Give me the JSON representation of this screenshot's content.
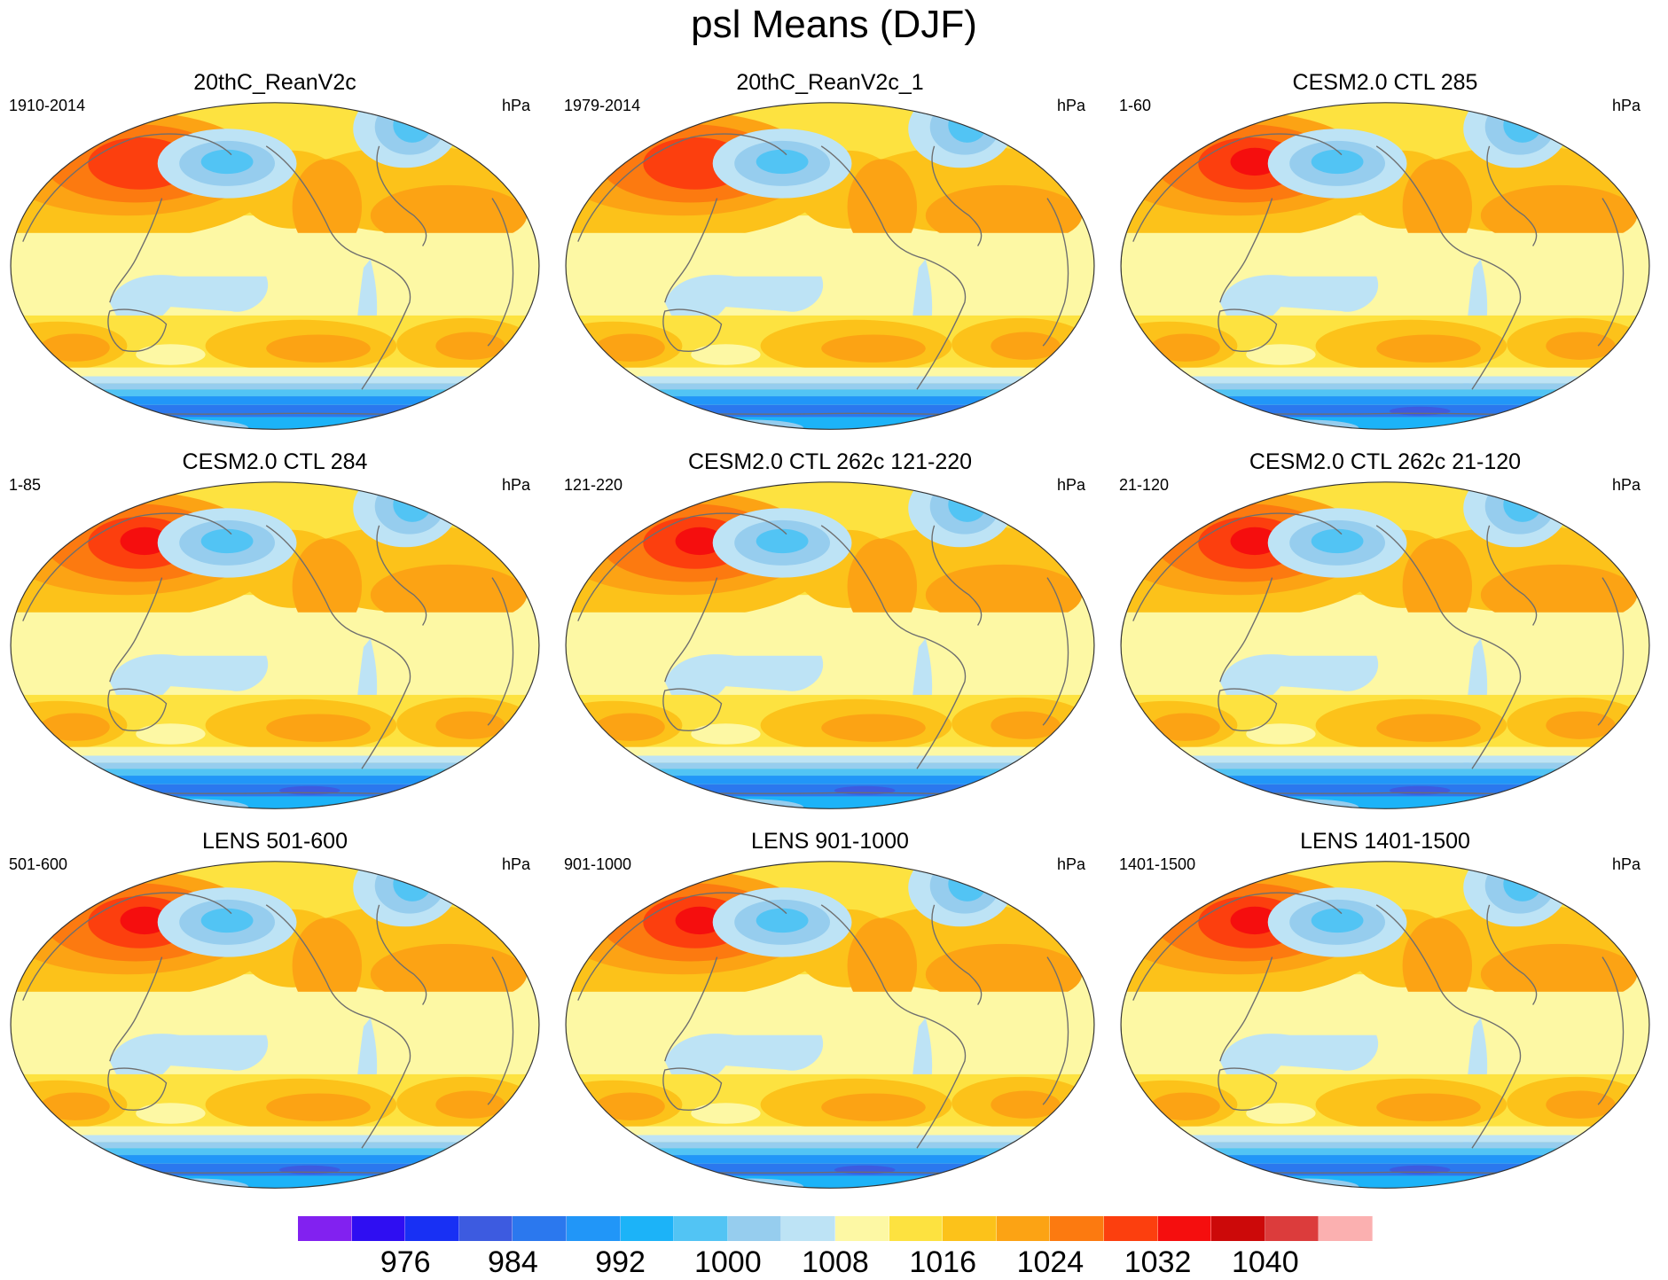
{
  "title": "psl Means (DJF)",
  "panels": [
    {
      "title": "20thC_ReanV2c",
      "left_label": "1910-2014",
      "right_label": "hPa"
    },
    {
      "title": "20thC_ReanV2c_1",
      "left_label": "1979-2014",
      "right_label": "hPa"
    },
    {
      "title": "CESM2.0 CTL 285",
      "left_label": "1-60",
      "right_label": "hPa"
    },
    {
      "title": "CESM2.0 CTL 284",
      "left_label": "1-85",
      "right_label": "hPa"
    },
    {
      "title": "CESM2.0 CTL 262c 121-220",
      "left_label": "121-220",
      "right_label": "hPa"
    },
    {
      "title": "CESM2.0 CTL 262c 21-120",
      "left_label": "21-120",
      "right_label": "hPa"
    },
    {
      "title": "LENS 501-600",
      "left_label": "501-600",
      "right_label": "hPa"
    },
    {
      "title": "LENS 901-1000",
      "left_label": "901-1000",
      "right_label": "hPa"
    },
    {
      "title": "LENS 1401-1500",
      "left_label": "1401-1500",
      "right_label": "hPa"
    }
  ],
  "colorbar": {
    "colors": [
      "#8221f0",
      "#2f0ef2",
      "#1830f4",
      "#3d5be0",
      "#2b78ee",
      "#2196f8",
      "#1cb3f8",
      "#52c4f4",
      "#96cdee",
      "#bde3f5",
      "#fdf8a4",
      "#fde240",
      "#fcc21a",
      "#fca314",
      "#fc7a10",
      "#fc3f0e",
      "#f50e0e",
      "#cc0909",
      "#dc3c3c",
      "#fbb0b0"
    ],
    "labels": [
      "976",
      "984",
      "992",
      "1000",
      "1008",
      "1016",
      "1024",
      "1032",
      "1040"
    ]
  },
  "map_colors": {
    "ocean_base": "#fdf8a4",
    "land_outline": "#6e6e6e"
  }
}
